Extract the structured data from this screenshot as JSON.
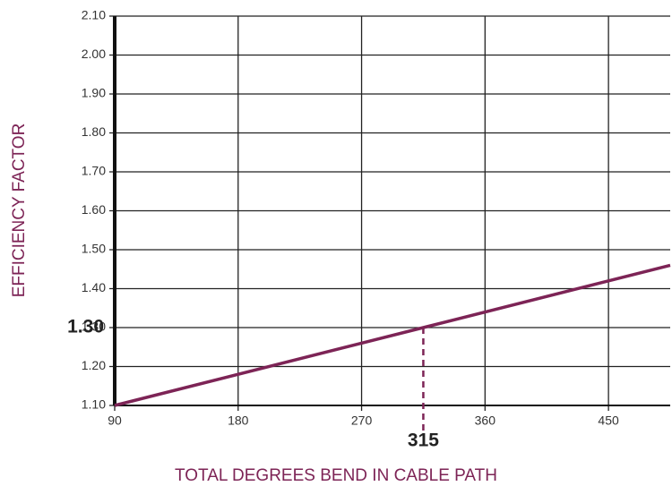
{
  "chart_data": {
    "type": "line",
    "xlabel": "TOTAL DEGREES BEND IN CABLE PATH",
    "ylabel": "EFFICIENCY FACTOR",
    "x": [
      90,
      315,
      495
    ],
    "series": [
      {
        "color": "#7d2456",
        "values": [
          1.1,
          1.3,
          1.46
        ]
      }
    ],
    "xlim": [
      90,
      495
    ],
    "xticks": [
      90,
      180,
      270,
      360,
      450
    ],
    "ylim": [
      1.1,
      2.1
    ],
    "yticks": [
      {
        "value": 1.1,
        "label": "1.10"
      },
      {
        "value": 1.2,
        "label": "1.20"
      },
      {
        "value": 1.3,
        "label": "1.30"
      },
      {
        "value": 1.4,
        "label": "1.40"
      },
      {
        "value": 1.5,
        "label": "1.50"
      },
      {
        "value": 1.6,
        "label": "1.60"
      },
      {
        "value": 1.7,
        "label": "1.70"
      },
      {
        "value": 1.8,
        "label": "1.80"
      },
      {
        "value": 1.9,
        "label": "1.90"
      },
      {
        "value": 2.0,
        "label": "2.00"
      },
      {
        "value": 2.1,
        "label": "2.10"
      }
    ],
    "grid": true,
    "annotations": [
      {
        "x": 315,
        "y": 1.3,
        "x_label": "315",
        "y_label": "1.30"
      }
    ]
  }
}
